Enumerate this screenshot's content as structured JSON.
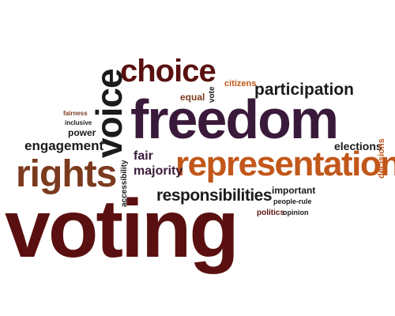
{
  "colors": {
    "black": "#1b1b1b",
    "maroon": "#5a1010",
    "purple": "#3a1a3a",
    "orange": "#c2571a",
    "brown": "#7b3a1e",
    "gold": "#a97a1a",
    "grey": "#555555"
  },
  "words": {
    "voting": "voting",
    "freedom": "freedom",
    "representation": "representation",
    "rights": "rights",
    "choice": "choice",
    "voice": "voice",
    "responsibilities": "responsibilities",
    "participation": "participation",
    "engagement": "engagement",
    "majority": "majority",
    "fair": "fair",
    "citizens": "citizens",
    "equal": "equal",
    "elections": "elections",
    "important": "important",
    "power": "power",
    "inclusive": "inclusive",
    "fairness": "fairness",
    "accessibility": "accessibility",
    "politics": "politics",
    "opinion": "opinion",
    "people_rule": "people-rule",
    "decisions": "decisions",
    "vote": "vote"
  }
}
